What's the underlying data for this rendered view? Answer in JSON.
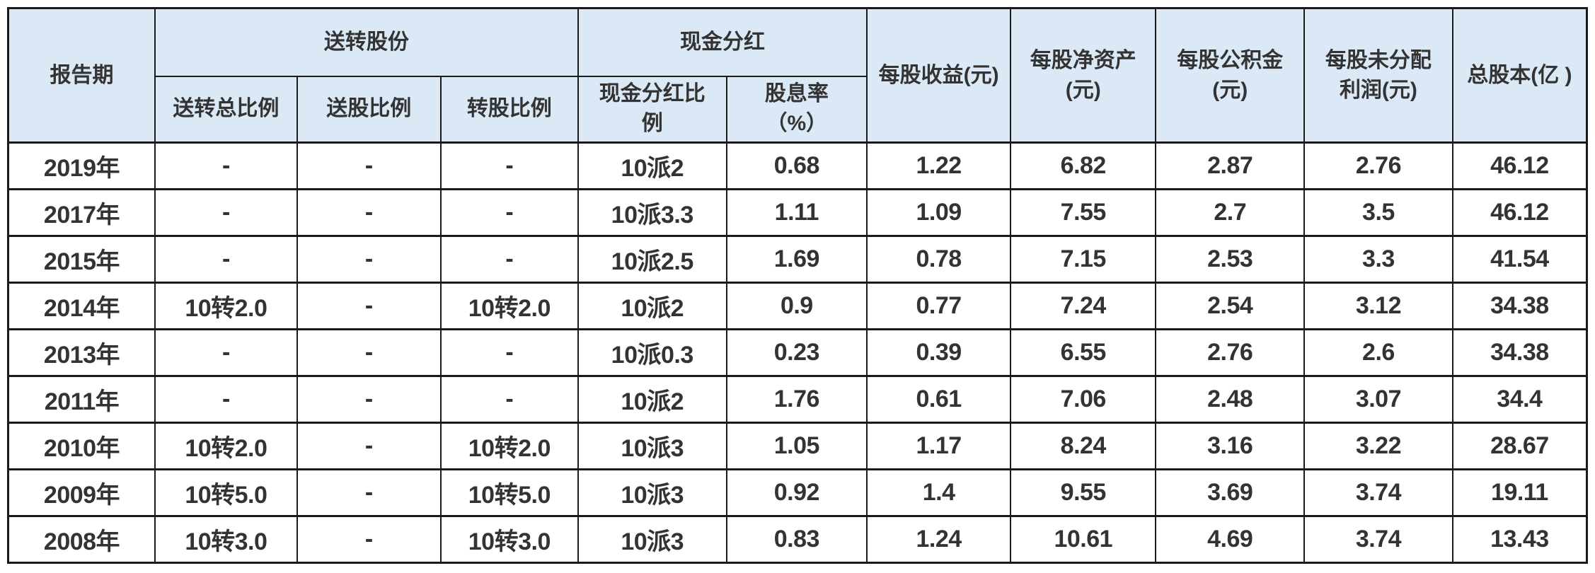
{
  "chart_data": {
    "type": "table",
    "columns": [
      "报告期",
      "送转总比例",
      "送股比例",
      "转股比例",
      "现金分红比例",
      "股息率（%）",
      "每股收益(元)",
      "每股净资产(元)",
      "每股公积金(元)",
      "每股未分配利润(元)",
      "总股本(亿)"
    ],
    "header": {
      "report_period": "报告期",
      "group_bonus_shares": "送转股份",
      "group_cash_dividend": "现金分红",
      "sub_bonus_total_ratio": "送转总比例",
      "sub_send_ratio": "送股比例",
      "sub_convert_ratio": "转股比例",
      "sub_cash_dividend_ratio": "现金分红比\n例",
      "sub_dividend_yield": "股息率\n（%）",
      "eps": "每股收益(元)",
      "net_assets_per_share": "每股净资产\n(元)",
      "reserve_per_share": "每股公积金\n(元)",
      "undistributed_profit_per_share": "每股未分配\n利润(元)",
      "total_shares": "总股本(亿 )"
    },
    "rows": [
      [
        "2019年",
        "-",
        "-",
        "-",
        "10派2",
        "0.68",
        "1.22",
        "6.82",
        "2.87",
        "2.76",
        "46.12"
      ],
      [
        "2017年",
        "-",
        "-",
        "-",
        "10派3.3",
        "1.11",
        "1.09",
        "7.55",
        "2.7",
        "3.5",
        "46.12"
      ],
      [
        "2015年",
        "-",
        "-",
        "-",
        "10派2.5",
        "1.69",
        "0.78",
        "7.15",
        "2.53",
        "3.3",
        "41.54"
      ],
      [
        "2014年",
        "10转2.0",
        "-",
        "10转2.0",
        "10派2",
        "0.9",
        "0.77",
        "7.24",
        "2.54",
        "3.12",
        "34.38"
      ],
      [
        "2013年",
        "-",
        "-",
        "-",
        "10派0.3",
        "0.23",
        "0.39",
        "6.55",
        "2.76",
        "2.6",
        "34.38"
      ],
      [
        "2011年",
        "-",
        "-",
        "-",
        "10派2",
        "1.76",
        "0.61",
        "7.06",
        "2.48",
        "3.07",
        "34.4"
      ],
      [
        "2010年",
        "10转2.0",
        "-",
        "10转2.0",
        "10派3",
        "1.05",
        "1.17",
        "8.24",
        "3.16",
        "3.22",
        "28.67"
      ],
      [
        "2009年",
        "10转5.0",
        "-",
        "10转5.0",
        "10派3",
        "0.92",
        "1.4",
        "9.55",
        "3.69",
        "3.74",
        "19.11"
      ],
      [
        "2008年",
        "10转3.0",
        "-",
        "10转3.0",
        "10派3",
        "0.83",
        "1.24",
        "10.61",
        "4.69",
        "3.74",
        "13.43"
      ]
    ],
    "layout": {
      "grid": "on",
      "header_rows": 2,
      "body_rows": 9
    }
  },
  "colors": {
    "header_bg": "#dbe9f6",
    "border": "#1a1a1a",
    "text": "#333333",
    "row_bg": "#ffffff"
  }
}
